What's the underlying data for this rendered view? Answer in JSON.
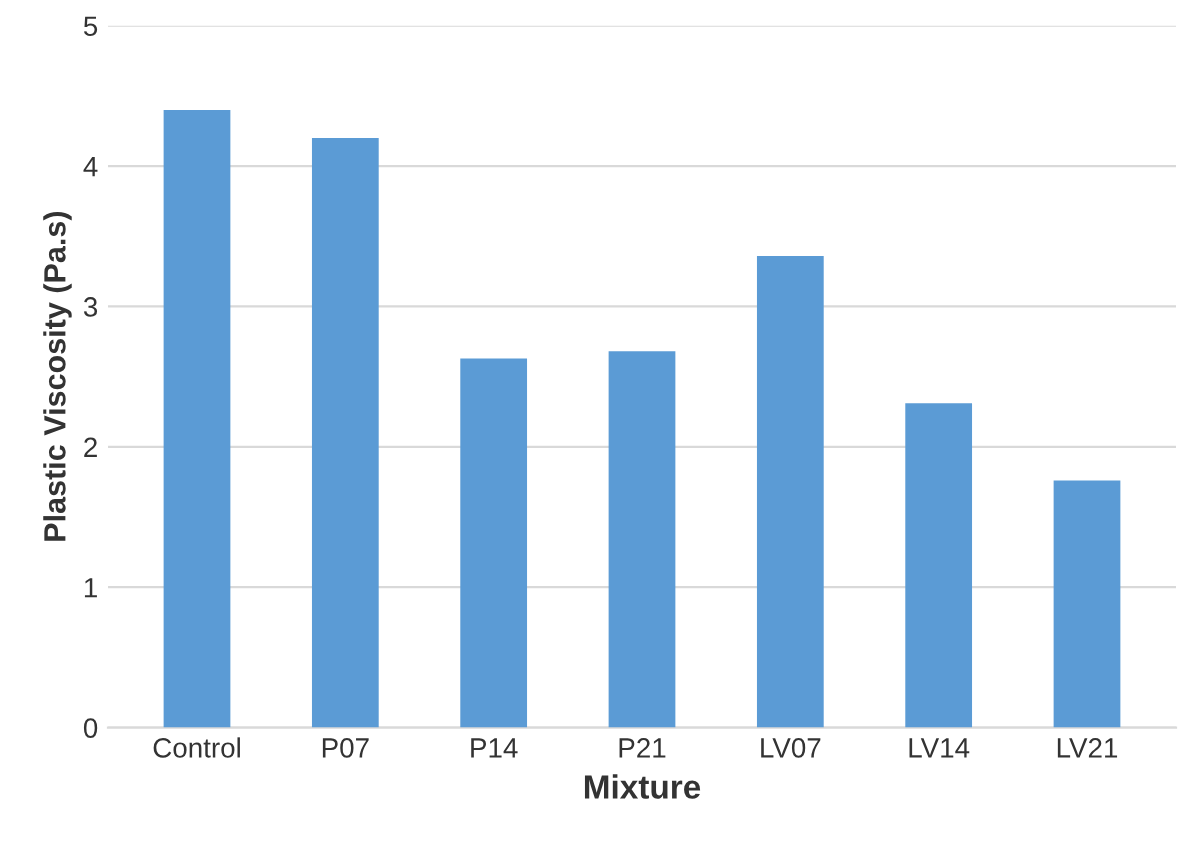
{
  "chart_data": {
    "type": "bar",
    "xlabel": "Mixture",
    "ylabel": "Plastic Viscosity (Pa.s)",
    "categories": [
      "Control",
      "P07",
      "P14",
      "P21",
      "LV07",
      "LV14",
      "LV21"
    ],
    "values": [
      4.4,
      4.2,
      2.63,
      2.68,
      3.36,
      2.31,
      1.76
    ],
    "color": "#5b9bd5",
    "ylim": [
      0,
      5
    ],
    "yticks": [
      0,
      1,
      2,
      3,
      4,
      5
    ],
    "grid": "y",
    "legend": false
  }
}
